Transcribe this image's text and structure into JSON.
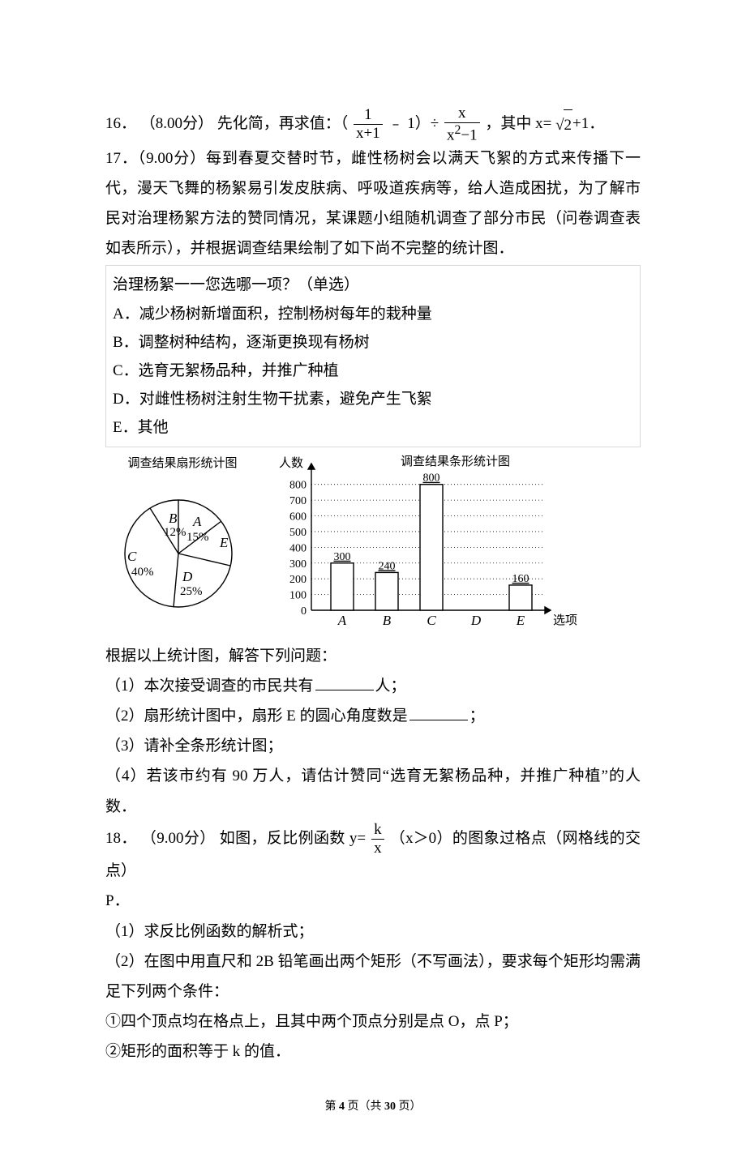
{
  "q16": {
    "number": "16．",
    "points": "（8.00分）",
    "lead": "先化简，再求值：（",
    "frac1_num": "1",
    "frac1_den": "x+1",
    "mid1": "﹣ 1）÷",
    "frac2_num": "x",
    "frac2_den_base": "x",
    "frac2_den_sup": "2",
    "frac2_den_tail": "−1",
    "mid2": "，其中 x=",
    "sqrt_sym": "√",
    "sqrt_rad": "2",
    "tail": "+1．"
  },
  "q17": {
    "number": "17．",
    "points": "（9.00分）",
    "body1": "每到春夏交替时节，雌性杨树会以满天飞絮的方式来传播下一代，漫天飞舞的杨絮易引发皮肤病、呼吸道疾病等，给人造成困扰，为了解市民对治理杨絮方法的赞同情况，某课题小组随机调查了部分市民（问卷调查表如表所示），并根据调查结果绘制了如下尚不完整的统计图．",
    "boxtitle": "治理杨絮一一您选哪一项？（单选）",
    "optA": "A．减少杨树新增面积，控制杨树每年的栽种量",
    "optB": "B．调整树种结构，逐渐更换现有杨树",
    "optC": "C．选育无絮杨品种，并推广种植",
    "optD": "D．对雌性杨树注射生物干扰素，避免产生飞絮",
    "optE": "E．其他",
    "pie": {
      "title": "调查结果扇形统计图",
      "colors": {
        "stroke": "#000000",
        "fill": "#ffffff",
        "text": "#000000"
      },
      "labels": {
        "A": "A",
        "Apct": "15%",
        "B": "B",
        "Bpct": "12%",
        "C": "C",
        "Cpct": "40%",
        "D": "D",
        "Dpct": "25%",
        "E": "E"
      }
    },
    "bar": {
      "title": "调查结果条形统计图",
      "ylabel": "人数",
      "xlabel": "选项",
      "yticks": [
        "0",
        "100",
        "200",
        "300",
        "400",
        "500",
        "600",
        "700",
        "800"
      ],
      "cats": [
        "A",
        "B",
        "C",
        "D",
        "E"
      ],
      "values": [
        300,
        240,
        800,
        null,
        160
      ],
      "value_labels": [
        "300",
        "240",
        "800",
        "",
        "160"
      ],
      "ylim": [
        0,
        850
      ],
      "bar_color": "#ffffff",
      "bar_stroke": "#000000",
      "grid_color": "#000000",
      "grid_dash": "1,3",
      "axis_color": "#000000"
    },
    "after": "根据以上统计图，解答下列问题：",
    "sub1a": "（1）本次接受调查的市民共有",
    "sub1b": "人；",
    "sub2a": "（2）扇形统计图中，扇形 E 的圆心角度数是",
    "sub2b": "；",
    "sub3": "（3）请补全条形统计图；",
    "sub4": "（4）若该市约有 90 万人，请估计赞同“选育无絮杨品种，并推广种植”的人数．"
  },
  "q18": {
    "number": "18．",
    "points": "（9.00分）",
    "lead": "如图，反比例函数 y=",
    "frac_num": "k",
    "frac_den": "x",
    "mid": "（x＞0）的图象过格点（网格线的交点）",
    "trail": "P．",
    "sub1": "（1）求反比例函数的解析式；",
    "sub2": "（2）在图中用直尺和 2B 铅笔画出两个矩形（不写画法），要求每个矩形均需满足下列两个条件：",
    "sub2a": "①四个顶点均在格点上，且其中两个顶点分别是点 O，点 P；",
    "sub2b": "②矩形的面积等于 k 的值．"
  },
  "footer": {
    "pre": "第 ",
    "cur": "4",
    "mid": " 页（共 ",
    "tot": "30",
    "suf": " 页）"
  }
}
